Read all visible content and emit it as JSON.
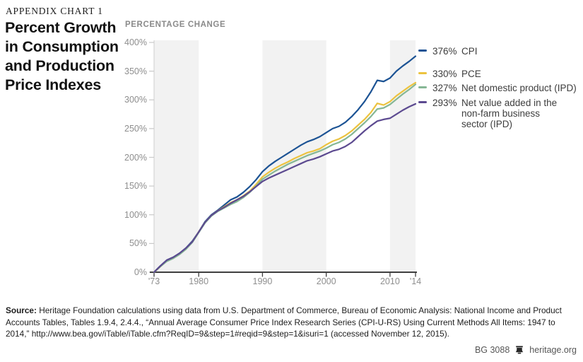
{
  "kicker": "APPENDIX CHART 1",
  "title": "Percent Growth\nin Consumption\nand Production\nPrice Indexes",
  "chart_data": {
    "type": "line",
    "title": "Percent Growth in Consumption and Production Price Indexes",
    "ylabel": "PERCENTAGE CHANGE",
    "xlabel": "",
    "x_range": [
      1973,
      2014
    ],
    "x_step": 1,
    "ylim": [
      0,
      400
    ],
    "grid": false,
    "legend_position": "right-of-line-ends",
    "band_color": "#f2f2f2",
    "axis_color": "#3f3f3f",
    "y_axis_line_color": "#cfcfcf",
    "shaded_bands": [
      {
        "from": 1973,
        "to": 1980
      },
      {
        "from": 1990,
        "to": 2000
      },
      {
        "from": 2010,
        "to": 2014
      }
    ],
    "y_ticks": [
      {
        "value": 0,
        "label": "0%"
      },
      {
        "value": 50,
        "label": "50%"
      },
      {
        "value": 100,
        "label": "100%"
      },
      {
        "value": 150,
        "label": "150%"
      },
      {
        "value": 200,
        "label": "200%"
      },
      {
        "value": 250,
        "label": "250%"
      },
      {
        "value": 300,
        "label": "300%"
      },
      {
        "value": 350,
        "label": "350%"
      },
      {
        "value": 400,
        "label": "400%"
      }
    ],
    "x_ticks": [
      {
        "year": 1973,
        "label": "'73"
      },
      {
        "year": 1980,
        "label": "1980"
      },
      {
        "year": 1990,
        "label": "1990"
      },
      {
        "year": 2000,
        "label": "2000"
      },
      {
        "year": 2010,
        "label": "2010"
      },
      {
        "year": 2014,
        "label": "'14"
      }
    ],
    "series": [
      {
        "id": "cpi",
        "name": "CPI",
        "end_label": "376%",
        "color": "#1c5394",
        "values": [
          0,
          11,
          21,
          26,
          33,
          42,
          54,
          70,
          88,
          100,
          108,
          117,
          126,
          131,
          139,
          149,
          161,
          175,
          185,
          193,
          200,
          207,
          214,
          221,
          227,
          231,
          236,
          243,
          250,
          254,
          261,
          271,
          283,
          297,
          314,
          334,
          332,
          338,
          350,
          359,
          367,
          376
        ]
      },
      {
        "id": "pce",
        "name": "PCE",
        "end_label": "330%",
        "color": "#ecc33f",
        "values": [
          0,
          10,
          20,
          25,
          32,
          41,
          53,
          70,
          87,
          99,
          107,
          114,
          121,
          126,
          133,
          141,
          153,
          166,
          174,
          181,
          187,
          192,
          198,
          203,
          208,
          211,
          215,
          222,
          228,
          232,
          238,
          246,
          256,
          266,
          278,
          294,
          291,
          297,
          307,
          315,
          323,
          330
        ]
      },
      {
        "id": "ndp",
        "name": "Net domestic product (IPD)",
        "end_label": "327%",
        "color": "#86b795",
        "values": [
          0,
          10,
          19,
          24,
          31,
          40,
          52,
          69,
          86,
          98,
          106,
          112,
          118,
          123,
          130,
          139,
          150,
          162,
          169,
          176,
          182,
          188,
          193,
          198,
          203,
          207,
          211,
          216,
          222,
          226,
          232,
          240,
          250,
          260,
          271,
          284,
          286,
          292,
          301,
          310,
          318,
          327
        ]
      },
      {
        "id": "nva",
        "name": "Net value added in the\nnon-farm business\nsector (IPD)",
        "end_label": "293%",
        "color": "#5c4a90",
        "values": [
          0,
          11,
          21,
          26,
          33,
          42,
          53,
          70,
          87,
          99,
          107,
          113,
          120,
          126,
          132,
          140,
          149,
          158,
          164,
          169,
          174,
          179,
          184,
          189,
          194,
          197,
          201,
          206,
          211,
          214,
          219,
          226,
          236,
          246,
          255,
          263,
          266,
          268,
          275,
          282,
          288,
          293
        ]
      }
    ]
  },
  "source": {
    "label": "Source:",
    "text": " Heritage Foundation calculations using data from U.S. Department of Commerce, Bureau of Economic Analysis: National Income and Product Accounts Tables, Tables 1.9.4, 2.4.4., “Annual Average Consumer Price Index Research Series (CPI-U-RS) Using Current Methods All Items: 1947 to 2014,” http://www.bea.gov/iTable/iTable.cfm?ReqID=9&step=1#reqid=9&step=1&isuri=1 (accessed November 12, 2015)."
  },
  "footer": {
    "doc_id": "BG 3088",
    "site": "heritage.org"
  }
}
